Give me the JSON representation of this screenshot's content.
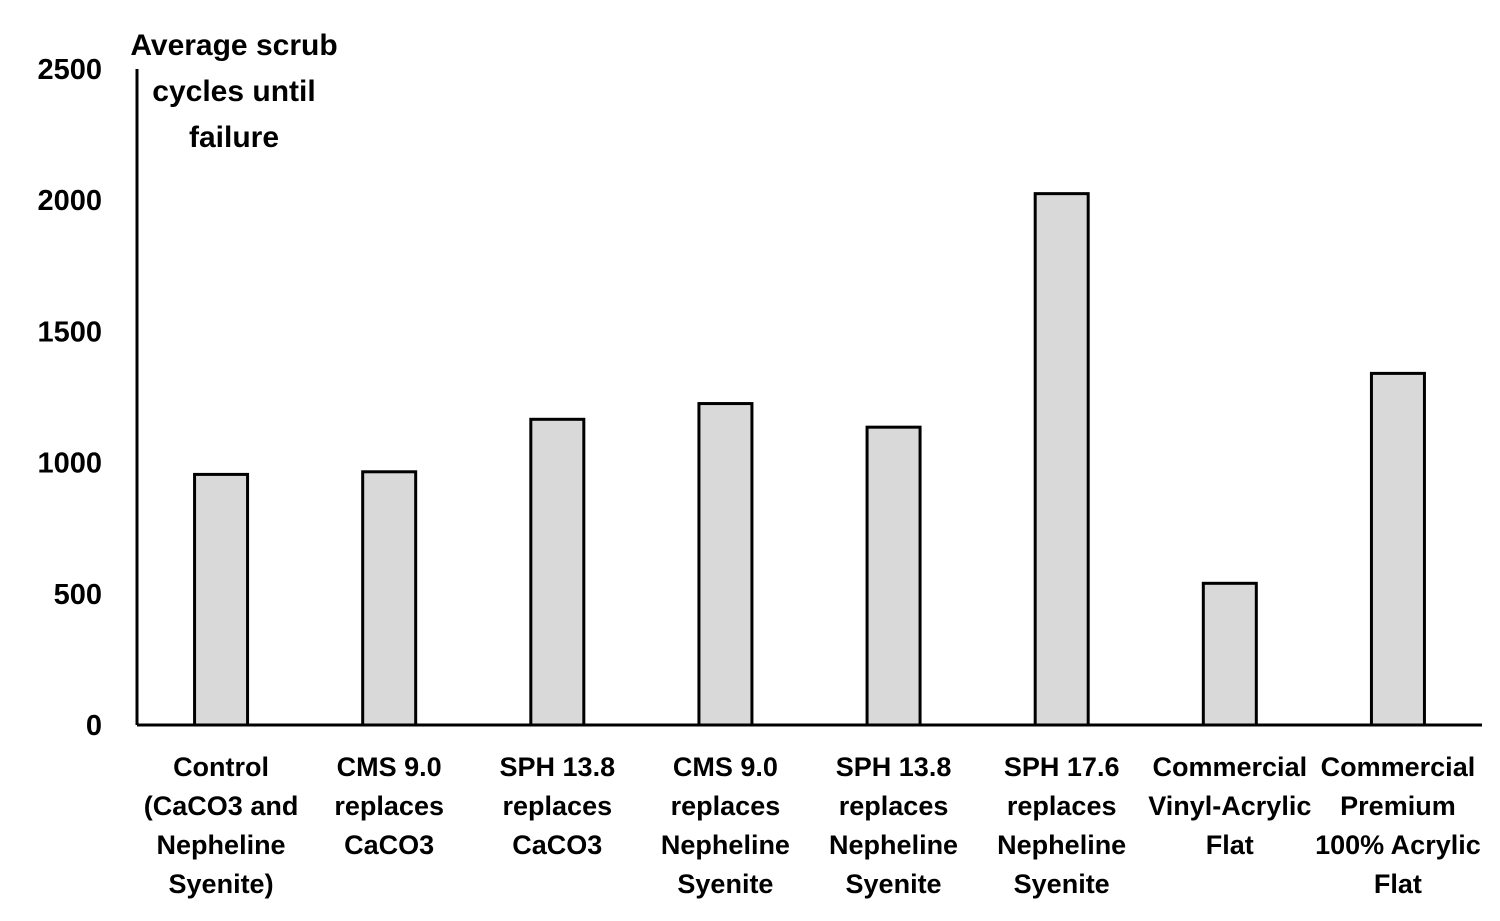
{
  "chart_data": {
    "type": "bar",
    "ylabel": [
      "Average scrub",
      "cycles until",
      "failure"
    ],
    "ylim": [
      0,
      2500
    ],
    "yticks": [
      "0",
      "500",
      "1000",
      "1500",
      "2000",
      "2500"
    ],
    "grid": false,
    "categories": [
      [
        "Control",
        "(CaCO3 and",
        "Nepheline",
        "Syenite)"
      ],
      [
        "CMS 9.0",
        "replaces",
        "CaCO3"
      ],
      [
        "SPH 13.8",
        "replaces",
        "CaCO3"
      ],
      [
        "CMS 9.0",
        "replaces",
        "Nepheline",
        "Syenite"
      ],
      [
        "SPH 13.8",
        "replaces",
        "Nepheline",
        "Syenite"
      ],
      [
        "SPH 17.6",
        "replaces",
        "Nepheline",
        "Syenite"
      ],
      [
        "Commercial",
        "Vinyl-Acrylic",
        "Flat"
      ],
      [
        "Commercial",
        "Premium",
        "100% Acrylic",
        "Flat"
      ]
    ],
    "values": [
      955,
      965,
      1165,
      1225,
      1135,
      2025,
      540,
      1340
    ],
    "colors": {
      "bar_fill": "#d9d9d9",
      "bar_stroke": "#000000",
      "axis": "#000000"
    }
  }
}
